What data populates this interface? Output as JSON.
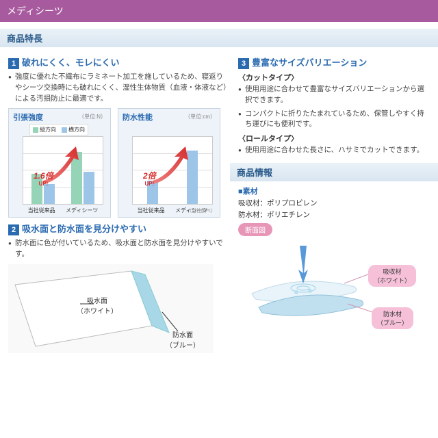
{
  "header": {
    "title": "メディシーツ"
  },
  "section_features": {
    "title": "商品特長"
  },
  "feature1": {
    "num": "1",
    "title": "破れにくく、モレにくい",
    "desc": "強度に優れた不織布にラミネート加工を施しているため、寝返りやシーツ交換時にも破れにくく、湿性生体物質（血液・体液など）による汚損防止に最適です。"
  },
  "chart1": {
    "title": "引張強度",
    "unit": "（単位:N）",
    "legend": [
      {
        "label": "縦方向",
        "color": "#96d4b8"
      },
      {
        "label": "横方向",
        "color": "#9dc5e8"
      }
    ],
    "categories": [
      "当社従来品",
      "メディシーツ"
    ],
    "series": [
      {
        "color": "#96d4b8",
        "values": [
          45,
          78
        ]
      },
      {
        "color": "#9dc5e8",
        "values": [
          30,
          48
        ]
      }
    ],
    "ylim": 100,
    "grid_steps": 4,
    "up_label": "1.6倍",
    "up_sub": "UP!",
    "background": "#edf3f9"
  },
  "chart2": {
    "title": "防水性能",
    "unit": "（単位:cm）",
    "categories": [
      "当社従来品",
      "メディシーツ"
    ],
    "series": [
      {
        "color": "#9dc5e8",
        "values": [
          35,
          80
        ]
      }
    ],
    "ylim": 100,
    "grid_steps": 4,
    "up_label": "2倍",
    "up_sub": "UP!",
    "footnote": "（当社調べ）",
    "background": "#edf3f9"
  },
  "feature2": {
    "num": "2",
    "title": "吸水面と防水面を見分けやすい",
    "desc": "防水面に色が付いているため、吸水面と防水面を見分けやすいです。",
    "side_a": "吸水面\n（ホワイト）",
    "side_b": "防水面\n（ブルー）",
    "color_a": "#ffffff",
    "color_b": "#a8d8e8"
  },
  "feature3": {
    "num": "3",
    "title": "豊富なサイズバリエーション",
    "cut_head": "〈カットタイプ〉",
    "cut_items": [
      "使用用途に合わせて豊富なサイズバリエーションから選択できます。",
      "コンパクトに折りたたまれているため、保管しやすく持ち運びにも便利です。"
    ],
    "roll_head": "〈ロールタイプ〉",
    "roll_items": [
      "使用用途に合わせた長さに、ハサミでカットできます。"
    ]
  },
  "section_info": {
    "title": "商品情報"
  },
  "material": {
    "head": "■素材",
    "line1": "吸収材：ポリプロピレン",
    "line2": "防水材：ポリエチレン",
    "diagram_label": "断面図",
    "callout_a": "吸収材\n（ホワイト）",
    "callout_b": "防水材\n（ブルー）",
    "layer_a_color": "#e8f4fa",
    "layer_b_color": "#c0e0f0",
    "arrow_color": "#3080d0"
  },
  "colors": {
    "accent": "#2a6ab0",
    "header_bg": "#a85a9e",
    "arrow_red": "#d62e2e",
    "pink": "#e896b8"
  }
}
